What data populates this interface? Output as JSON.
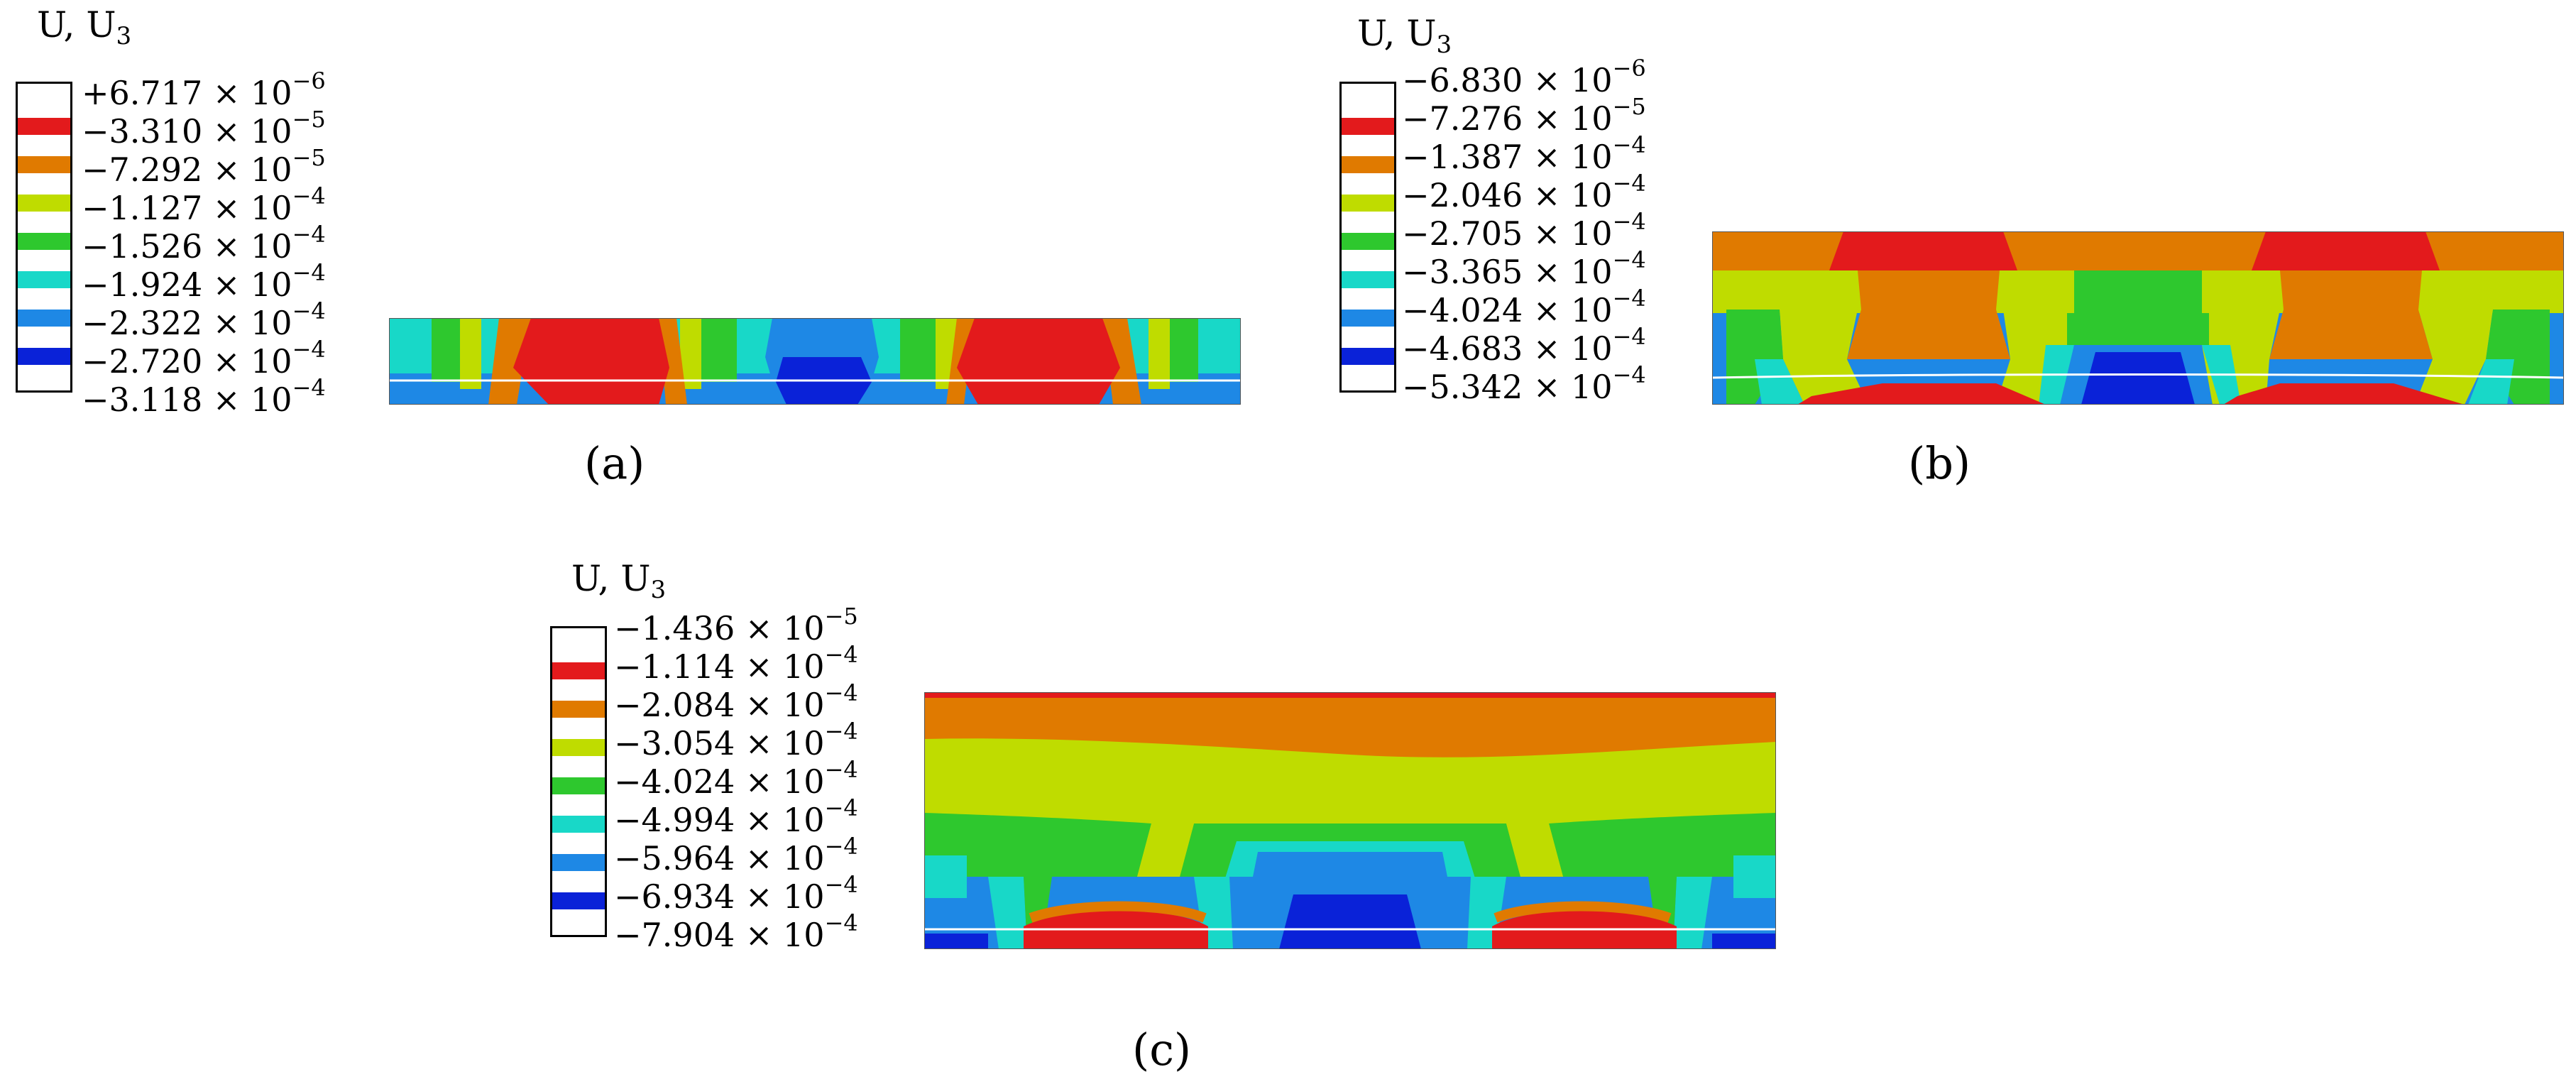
{
  "palette": {
    "red": "#e31a1c",
    "orange": "#e07a00",
    "yellow_green": "#bfdc00",
    "green": "#2ec82e",
    "cyan": "#18d8c8",
    "light_blue": "#1e88e5",
    "blue": "#0a22d8",
    "white": "#ffffff",
    "line": "#ffffff"
  },
  "panels": [
    {
      "id": "a",
      "legend_title": "U, U",
      "legend_subscript": "3",
      "legend_entries": [
        {
          "sign": "+",
          "mantissa": "6.717",
          "exponent": "−6",
          "color": "#ffffff"
        },
        {
          "sign": "−",
          "mantissa": "3.310",
          "exponent": "−5",
          "color": "#e31a1c"
        },
        {
          "sign": "−",
          "mantissa": "7.292",
          "exponent": "−5",
          "color": "#e07a00"
        },
        {
          "sign": "−",
          "mantissa": "1.127",
          "exponent": "−4",
          "color": "#bfdc00"
        },
        {
          "sign": "−",
          "mantissa": "1.526",
          "exponent": "−4",
          "color": "#2ec82e"
        },
        {
          "sign": "−",
          "mantissa": "1.924",
          "exponent": "−4",
          "color": "#18d8c8"
        },
        {
          "sign": "−",
          "mantissa": "2.322",
          "exponent": "−4",
          "color": "#1e88e5"
        },
        {
          "sign": "−",
          "mantissa": "2.720",
          "exponent": "−4",
          "color": "#0a22d8"
        },
        {
          "sign": "−",
          "mantissa": "3.118",
          "exponent": "−4",
          "color": "#ffffff"
        }
      ],
      "caption": "(a)"
    },
    {
      "id": "b",
      "legend_title": "U, U",
      "legend_subscript": "3",
      "legend_entries": [
        {
          "sign": "−",
          "mantissa": "6.830",
          "exponent": "−6",
          "color": "#ffffff"
        },
        {
          "sign": "−",
          "mantissa": "7.276",
          "exponent": "−5",
          "color": "#e31a1c"
        },
        {
          "sign": "−",
          "mantissa": "1.387",
          "exponent": "−4",
          "color": "#e07a00"
        },
        {
          "sign": "−",
          "mantissa": "2.046",
          "exponent": "−4",
          "color": "#bfdc00"
        },
        {
          "sign": "−",
          "mantissa": "2.705",
          "exponent": "−4",
          "color": "#2ec82e"
        },
        {
          "sign": "−",
          "mantissa": "3.365",
          "exponent": "−4",
          "color": "#18d8c8"
        },
        {
          "sign": "−",
          "mantissa": "4.024",
          "exponent": "−4",
          "color": "#1e88e5"
        },
        {
          "sign": "−",
          "mantissa": "4.683",
          "exponent": "−4",
          "color": "#0a22d8"
        },
        {
          "sign": "−",
          "mantissa": "5.342",
          "exponent": "−4",
          "color": "#ffffff"
        }
      ],
      "caption": "(b)"
    },
    {
      "id": "c",
      "legend_title": "U, U",
      "legend_subscript": "3",
      "legend_entries": [
        {
          "sign": "−",
          "mantissa": "1.436",
          "exponent": "−5",
          "color": "#ffffff"
        },
        {
          "sign": "−",
          "mantissa": "1.114",
          "exponent": "−4",
          "color": "#e31a1c"
        },
        {
          "sign": "−",
          "mantissa": "2.084",
          "exponent": "−4",
          "color": "#e07a00"
        },
        {
          "sign": "−",
          "mantissa": "3.054",
          "exponent": "−4",
          "color": "#bfdc00"
        },
        {
          "sign": "−",
          "mantissa": "4.024",
          "exponent": "−4",
          "color": "#2ec82e"
        },
        {
          "sign": "−",
          "mantissa": "4.994",
          "exponent": "−4",
          "color": "#18d8c8"
        },
        {
          "sign": "−",
          "mantissa": "5.964",
          "exponent": "−4",
          "color": "#1e88e5"
        },
        {
          "sign": "−",
          "mantissa": "6.934",
          "exponent": "−4",
          "color": "#0a22d8"
        },
        {
          "sign": "−",
          "mantissa": "7.904",
          "exponent": "−4",
          "color": "#ffffff"
        }
      ],
      "caption": "(c)"
    }
  ]
}
